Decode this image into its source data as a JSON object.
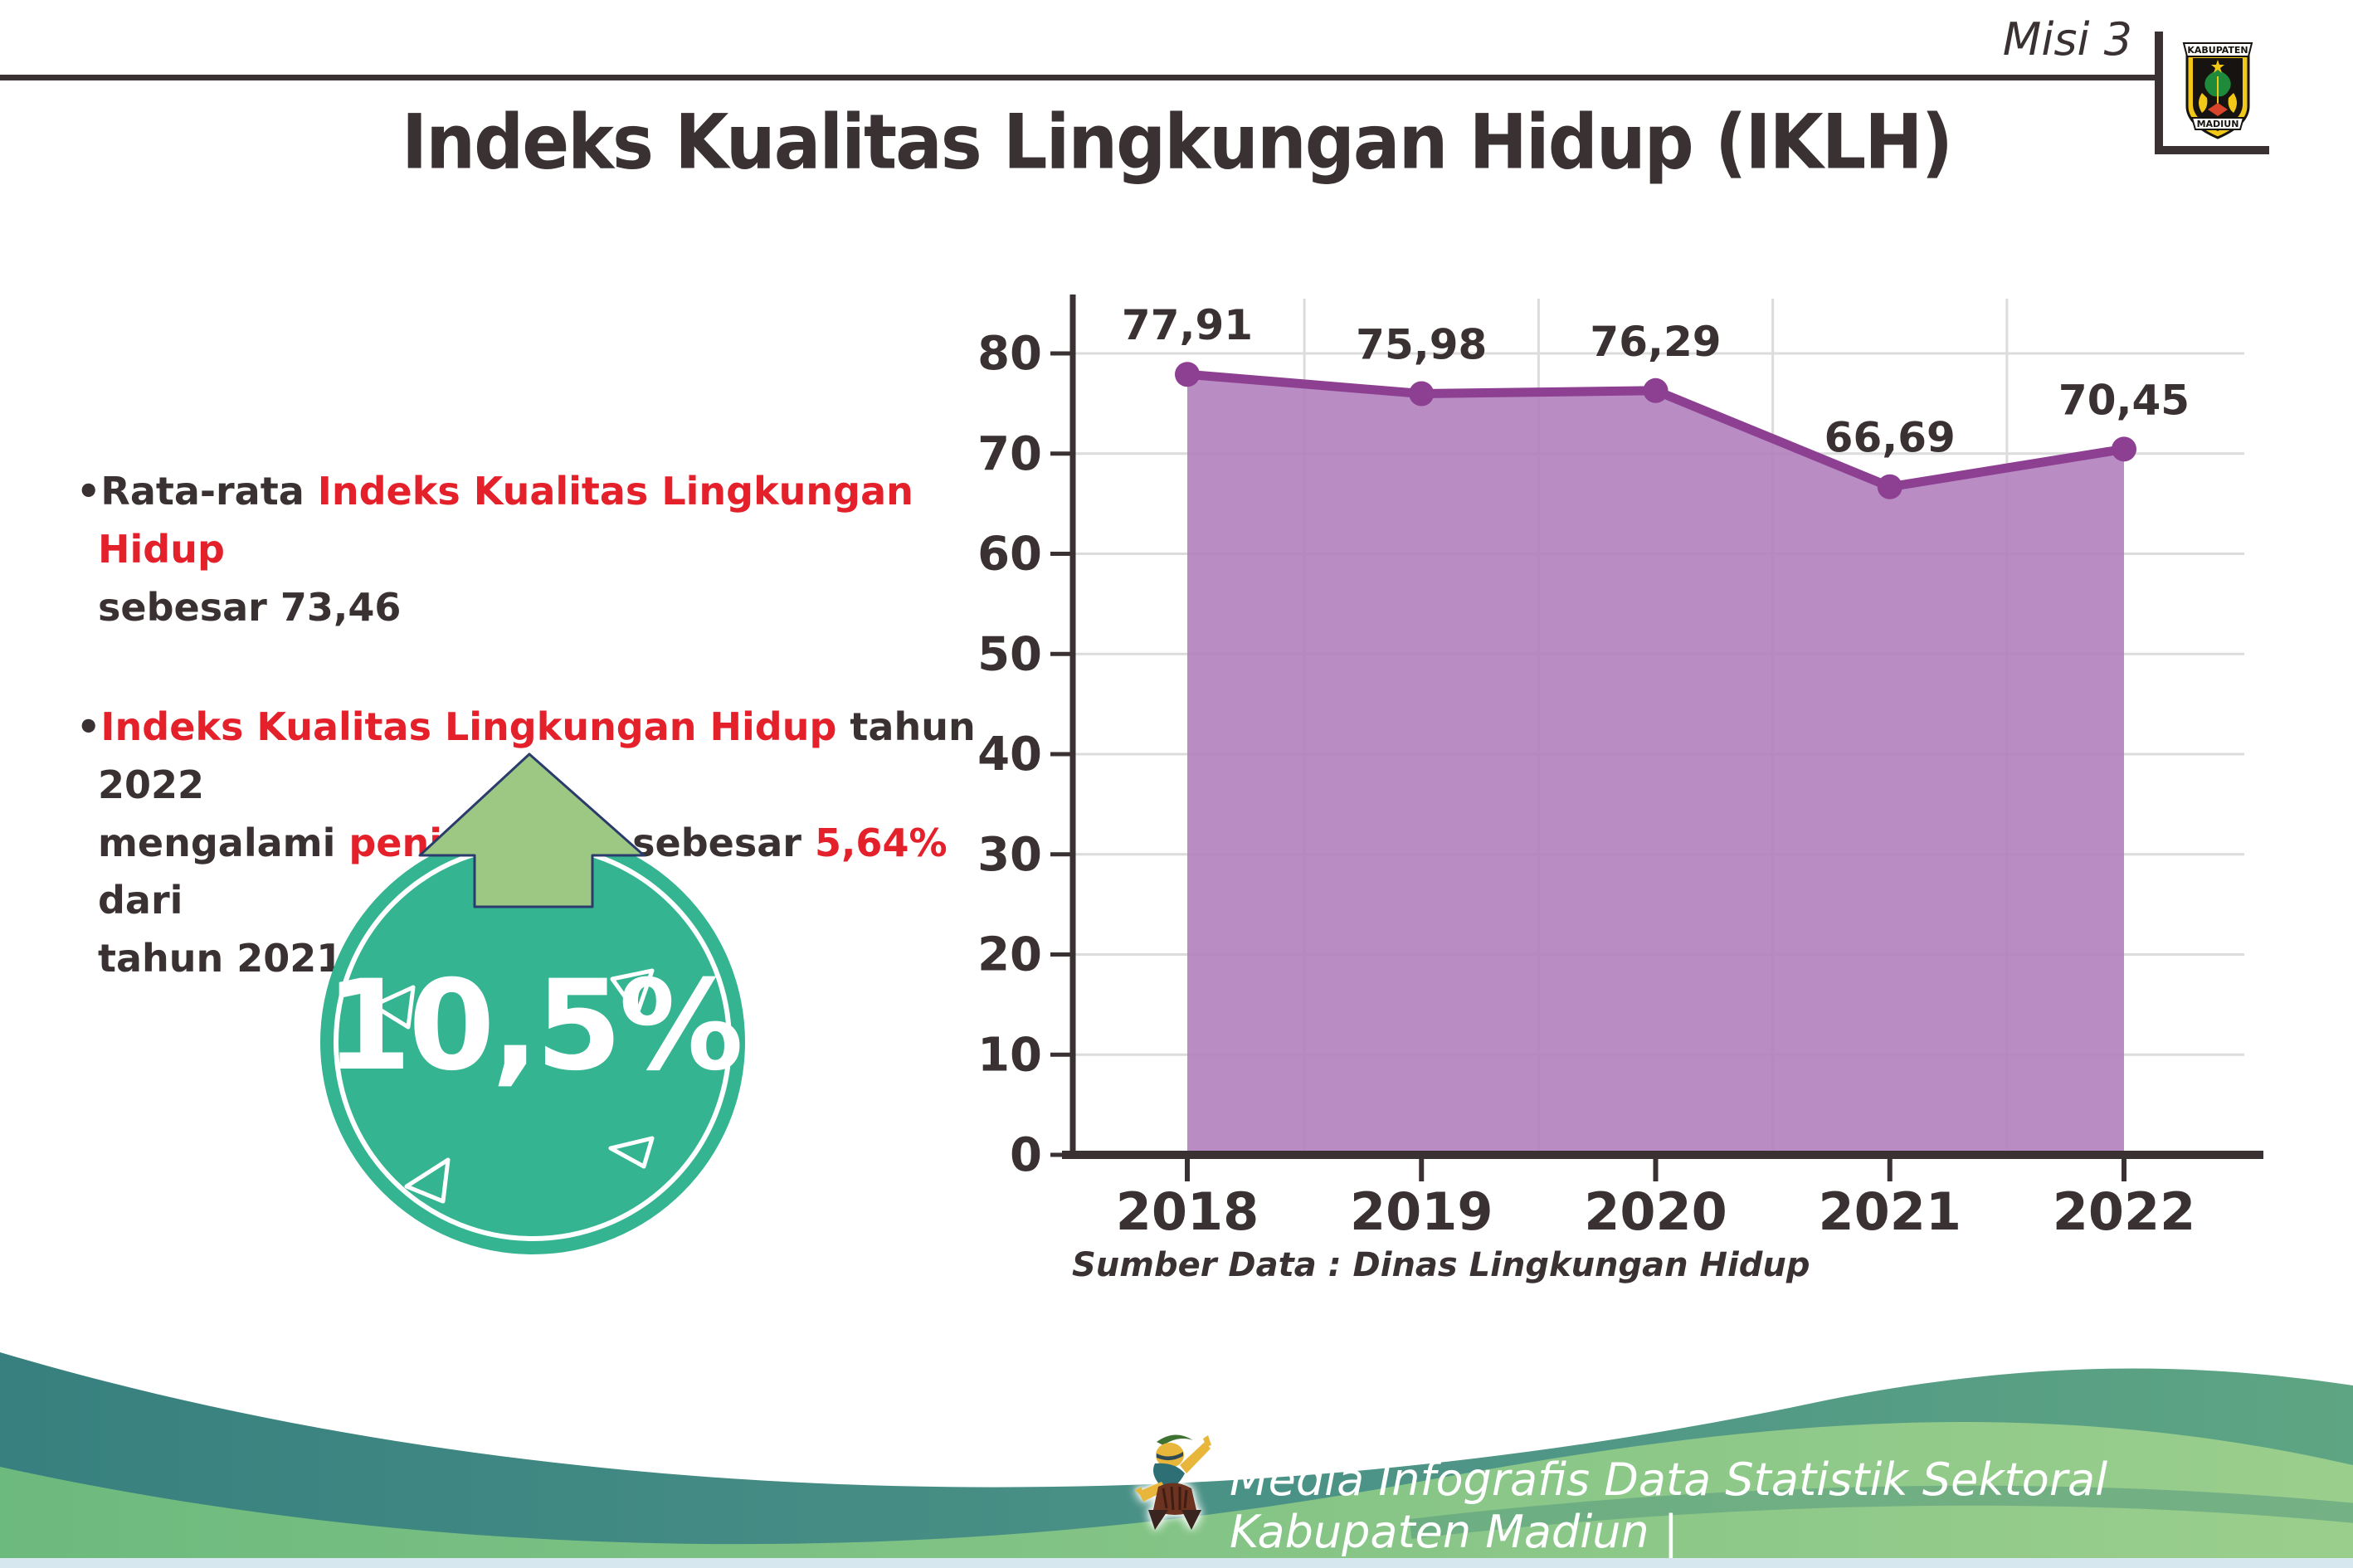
{
  "header": {
    "misi": "Misi 3",
    "title": "Indeks Kualitas Lingkungan Hidup (IKLH)"
  },
  "logo": {
    "top_banner": "KABUPATEN",
    "bottom_banner": "MADIUN"
  },
  "bullets": {
    "dot": "•",
    "b1": {
      "s1": "Rata-rata ",
      "s2": "Indeks Kualitas Lingkungan Hidup",
      "s3": "sebesar 73,46"
    },
    "b2": {
      "s1": "Indeks Kualitas Lingkungan Hidup",
      "s2": " tahun 2022",
      "s3": "mengalami ",
      "s4": "peningkatan",
      "s5": " sebesar ",
      "s6": "5,64%",
      "s7": " dari",
      "s8": "tahun 2021"
    }
  },
  "badge": {
    "value": "10,5%"
  },
  "chart_data": {
    "type": "area",
    "categories": [
      "2018",
      "2019",
      "2020",
      "2021",
      "2022"
    ],
    "values": [
      77.91,
      75.98,
      76.29,
      66.69,
      70.45
    ],
    "point_labels": [
      "77,91",
      "75,98",
      "76,29",
      "66,69",
      "70,45"
    ],
    "title": "",
    "xlabel": "",
    "ylabel": "",
    "ylim": [
      0,
      80
    ],
    "ytick_step": 10,
    "grid": true,
    "legend": false,
    "fill_color": "#b180bc",
    "line_color": "#8d4092",
    "label_color": "#3a3132"
  },
  "source_note": "Sumber Data : Dinas Lingkungan Hidup",
  "footer": {
    "text": "Media Infografis Data Statistik Sektoral Kabupaten Madiun |"
  },
  "colors": {
    "accent_red": "#e4202b",
    "dark_text": "#3a3132",
    "badge_teal": "#35b492",
    "arrow_green": "#9dc884",
    "footer_teal": "#37807f",
    "footer_green": "#7ec07f"
  }
}
